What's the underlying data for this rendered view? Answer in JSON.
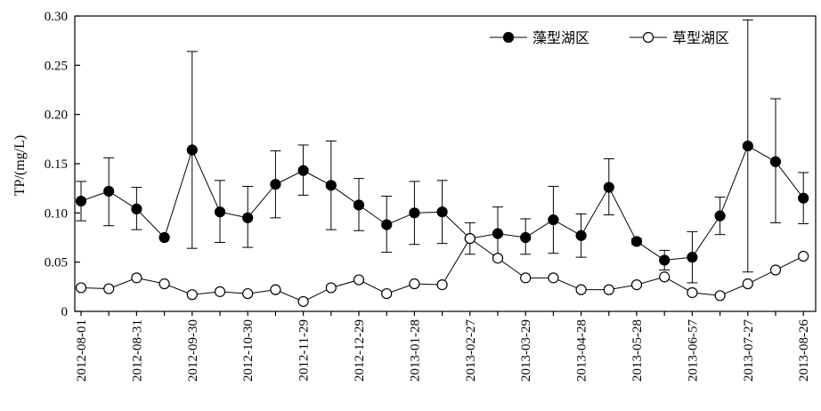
{
  "chart_data": {
    "type": "line",
    "title": "",
    "xlabel": "",
    "ylabel": "TP/(mg/L)",
    "ylim": [
      0,
      0.3
    ],
    "y_ticks": [
      0,
      0.05,
      0.1,
      0.15,
      0.2,
      0.25,
      0.3
    ],
    "y_tick_labels": [
      "0",
      "0.05",
      "0.10",
      "0.15",
      "0.20",
      "0.25",
      "0.30"
    ],
    "x_tick_labels": [
      "2012-08-01",
      "2012-08-31",
      "2012-09-30",
      "2012-10-30",
      "2012-11-29",
      "2012-12-29",
      "2013-01-28",
      "2013-02-27",
      "2013-03-29",
      "2013-04-28",
      "2013-05-28",
      "2013-06-57",
      "2013-07-27",
      "2013-08-26"
    ],
    "legend_position": "top-right",
    "grid": false,
    "series": [
      {
        "name": "藻型湖区",
        "marker": "filled-circle",
        "color": "#000000",
        "values": [
          0.112,
          0.122,
          0.104,
          0.075,
          0.164,
          0.101,
          0.095,
          0.129,
          0.143,
          0.128,
          0.108,
          0.088,
          0.1,
          0.101,
          0.074,
          0.079,
          0.075,
          0.093,
          0.077,
          0.126,
          0.071,
          0.052,
          0.055,
          0.097,
          0.168,
          0.152,
          0.115
        ],
        "error_upper": [
          0.132,
          0.156,
          0.126,
          null,
          0.264,
          0.133,
          0.127,
          0.163,
          0.169,
          0.173,
          0.135,
          0.117,
          0.132,
          0.133,
          0.09,
          0.106,
          0.094,
          0.127,
          0.099,
          0.155,
          0.074,
          0.062,
          0.081,
          0.116,
          0.296,
          0.216,
          0.141
        ],
        "error_lower": [
          0.092,
          0.087,
          0.083,
          null,
          0.064,
          0.07,
          0.065,
          0.095,
          0.118,
          0.083,
          0.082,
          0.06,
          0.068,
          0.069,
          0.058,
          0.056,
          0.058,
          0.059,
          0.055,
          0.098,
          0.068,
          0.042,
          0.029,
          0.078,
          0.04,
          0.09,
          0.089
        ]
      },
      {
        "name": "草型湖区",
        "marker": "open-circle",
        "color": "#000000",
        "values": [
          0.024,
          0.023,
          0.034,
          0.028,
          0.017,
          0.02,
          0.018,
          0.022,
          0.01,
          0.024,
          0.032,
          0.018,
          0.028,
          0.027,
          0.074,
          0.054,
          0.034,
          0.034,
          0.022,
          0.022,
          0.027,
          0.035,
          0.019,
          0.016,
          0.028,
          0.042,
          0.056
        ]
      }
    ]
  }
}
